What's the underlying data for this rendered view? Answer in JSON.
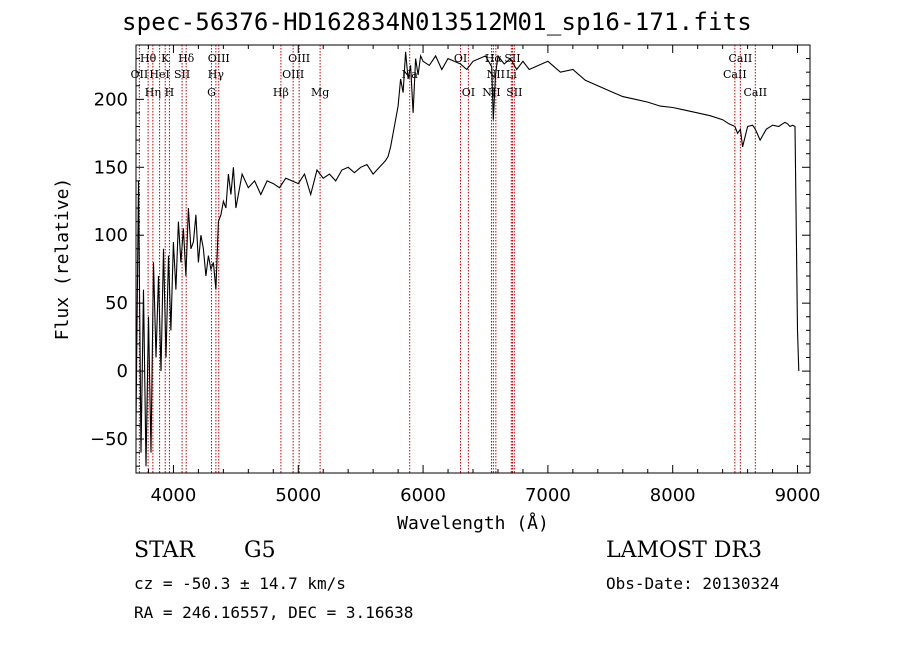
{
  "header": {
    "title": "spec-56376-HD162834N013512M01_sp16-171.fits"
  },
  "chart_data": {
    "type": "line",
    "title": "spec-56376-HD162834N013512M01_sp16-171.fits",
    "xlabel": "Wavelength (Å)",
    "ylabel": "Flux (relative)",
    "xlim": [
      3700,
      9100
    ],
    "ylim": [
      -75,
      240
    ],
    "xticks": [
      4000,
      5000,
      6000,
      7000,
      8000,
      9000
    ],
    "yticks": [
      -50,
      0,
      50,
      100,
      150,
      200
    ],
    "series": [
      {
        "name": "spectrum",
        "x": [
          3700,
          3720,
          3740,
          3760,
          3780,
          3800,
          3820,
          3840,
          3860,
          3880,
          3900,
          3920,
          3940,
          3960,
          3980,
          4000,
          4020,
          4040,
          4060,
          4080,
          4100,
          4120,
          4140,
          4160,
          4180,
          4200,
          4220,
          4240,
          4260,
          4280,
          4300,
          4320,
          4340,
          4360,
          4380,
          4400,
          4420,
          4440,
          4460,
          4480,
          4500,
          4550,
          4600,
          4650,
          4700,
          4750,
          4800,
          4850,
          4900,
          4950,
          5000,
          5050,
          5100,
          5150,
          5200,
          5250,
          5300,
          5350,
          5400,
          5450,
          5500,
          5550,
          5600,
          5650,
          5700,
          5720,
          5740,
          5760,
          5780,
          5800,
          5820,
          5840,
          5860,
          5880,
          5900,
          5920,
          5940,
          5960,
          5980,
          6000,
          6050,
          6100,
          6150,
          6200,
          6250,
          6300,
          6350,
          6400,
          6450,
          6500,
          6550,
          6563,
          6580,
          6600,
          6650,
          6700,
          6750,
          6800,
          6850,
          6900,
          6950,
          7000,
          7100,
          7200,
          7300,
          7400,
          7500,
          7600,
          7700,
          7800,
          7900,
          8000,
          8100,
          8200,
          8300,
          8400,
          8450,
          8498,
          8520,
          8542,
          8560,
          8600,
          8640,
          8662,
          8700,
          8750,
          8800,
          8850,
          8880,
          8900,
          8920,
          8940,
          8960,
          8980,
          9000,
          9010
        ],
        "values": [
          -40,
          140,
          -60,
          60,
          -70,
          40,
          -60,
          80,
          10,
          70,
          0,
          90,
          10,
          85,
          30,
          95,
          60,
          110,
          80,
          105,
          70,
          120,
          90,
          95,
          115,
          80,
          100,
          90,
          70,
          85,
          75,
          80,
          60,
          110,
          115,
          125,
          120,
          145,
          130,
          150,
          120,
          145,
          135,
          140,
          130,
          140,
          138,
          135,
          142,
          140,
          138,
          145,
          130,
          148,
          142,
          145,
          140,
          148,
          150,
          146,
          150,
          152,
          145,
          150,
          155,
          158,
          165,
          175,
          185,
          195,
          215,
          205,
          235,
          215,
          225,
          190,
          230,
          218,
          232,
          228,
          225,
          232,
          222,
          230,
          228,
          226,
          222,
          228,
          230,
          232,
          224,
          185,
          218,
          232,
          226,
          230,
          222,
          228,
          222,
          224,
          226,
          228,
          220,
          222,
          214,
          210,
          206,
          202,
          200,
          198,
          195,
          194,
          192,
          190,
          188,
          185,
          182,
          180,
          175,
          178,
          165,
          180,
          181,
          178,
          170,
          178,
          181,
          180,
          182,
          183,
          182,
          180,
          181,
          180,
          30,
          0
        ]
      }
    ],
    "line_markers": [
      {
        "label": "OII",
        "wavelength": 3727,
        "row": 2
      },
      {
        "label": "Hθ",
        "wavelength": 3797,
        "row": 1
      },
      {
        "label": "Hη",
        "wavelength": 3835,
        "row": 3
      },
      {
        "label": "HeI",
        "wavelength": 3889,
        "row": 2
      },
      {
        "label": "K",
        "wavelength": 3934,
        "row": 1
      },
      {
        "label": "H",
        "wavelength": 3968,
        "row": 3
      },
      {
        "label": "SII",
        "wavelength": 4069,
        "row": 2
      },
      {
        "label": "Hδ",
        "wavelength": 4102,
        "row": 1
      },
      {
        "label": "G",
        "wavelength": 4305,
        "row": 3
      },
      {
        "label": "Hγ",
        "wavelength": 4340,
        "row": 2
      },
      {
        "label": "OIII",
        "wavelength": 4363,
        "row": 1
      },
      {
        "label": "Hβ",
        "wavelength": 4861,
        "row": 3
      },
      {
        "label": "OIII",
        "wavelength": 4959,
        "row": 2
      },
      {
        "label": "OIII",
        "wavelength": 5007,
        "row": 1
      },
      {
        "label": "Mg",
        "wavelength": 5175,
        "row": 3
      },
      {
        "label": "Na",
        "wavelength": 5893,
        "row": 2
      },
      {
        "label": "OI",
        "wavelength": 6300,
        "row": 1
      },
      {
        "label": "OI",
        "wavelength": 6363,
        "row": 3
      },
      {
        "label": "NII",
        "wavelength": 6548,
        "row": 3
      },
      {
        "label": "Hα",
        "wavelength": 6563,
        "row": 1
      },
      {
        "label": "NII",
        "wavelength": 6583,
        "row": 2
      },
      {
        "label": "Li",
        "wavelength": 6707,
        "row": 2
      },
      {
        "label": "SII",
        "wavelength": 6716,
        "row": 1
      },
      {
        "label": "SII",
        "wavelength": 6731,
        "row": 3
      },
      {
        "label": "CaII",
        "wavelength": 8498,
        "row": 2
      },
      {
        "label": "CaII",
        "wavelength": 8542,
        "row": 1
      },
      {
        "label": "CaII",
        "wavelength": 8662,
        "row": 3
      }
    ]
  },
  "info": {
    "class_label": "STAR",
    "subclass": "G5",
    "survey": "LAMOST DR3",
    "cz": "cz = -50.3 ± 14.7 km/s",
    "obs_date": "Obs-Date: 20130324",
    "coords": "RA = 246.16557, DEC =   3.16638"
  },
  "colors": {
    "axis": "#000000",
    "spectrum": "#000000",
    "marker": "#cc0000"
  }
}
